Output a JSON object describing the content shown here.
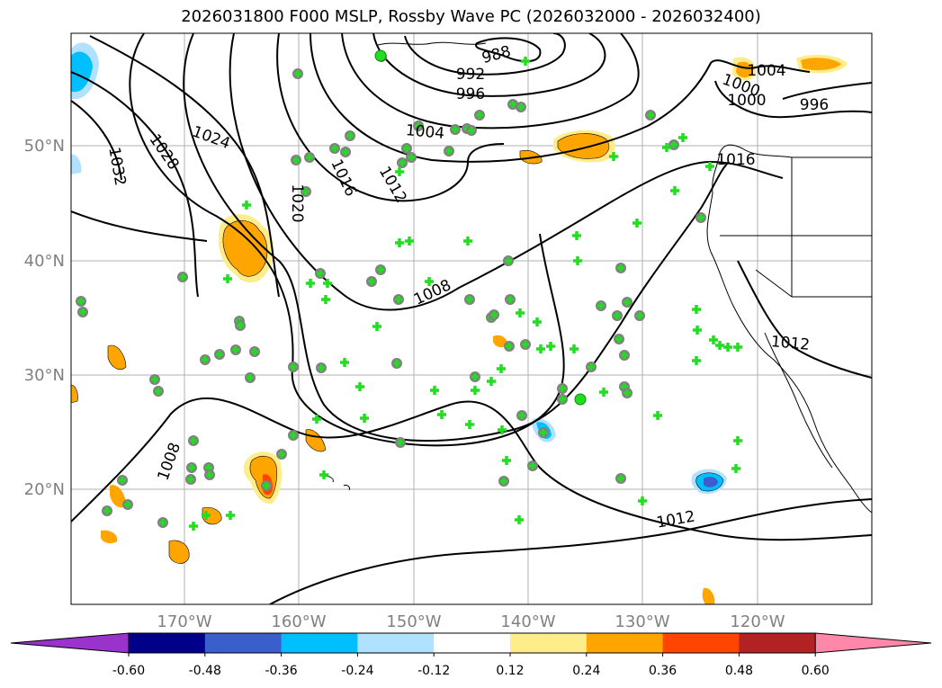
{
  "title": "2026031800 F000 MSLP, Rossby Wave PC (2026032000 - 2026032400)",
  "lat_labels": [
    "50°N",
    "40°N",
    "30°N",
    "20°N"
  ],
  "lon_labels": [
    "170°W",
    "160°W",
    "150°W",
    "140°W",
    "130°W",
    "120°W"
  ],
  "colorbar": {
    "ticks": [
      "-0.60",
      "-0.48",
      "-0.36",
      "-0.24",
      "-0.12",
      "0.12",
      "0.24",
      "0.36",
      "0.48",
      "0.60"
    ],
    "colors": [
      "#9933cc",
      "#00008b",
      "#3a5fcd",
      "#00bfff",
      "#b0e2ff",
      "#ffffff",
      "#ffec8b",
      "#ffa500",
      "#ff4500",
      "#b22222",
      "#ff88aa"
    ]
  },
  "contour_labels": [
    "988",
    "992",
    "996",
    "1004",
    "1024",
    "1028",
    "1032",
    "1020",
    "1016",
    "1012",
    "1008",
    "1008",
    "1004",
    "1000",
    "1000",
    "996",
    "1016",
    "1012",
    "1012"
  ],
  "colors": {
    "contour": "#000000",
    "grid": "#b0b0b0",
    "tick_label": "#808080",
    "marker": "#22dd22",
    "marker_edge": "#808080"
  }
}
